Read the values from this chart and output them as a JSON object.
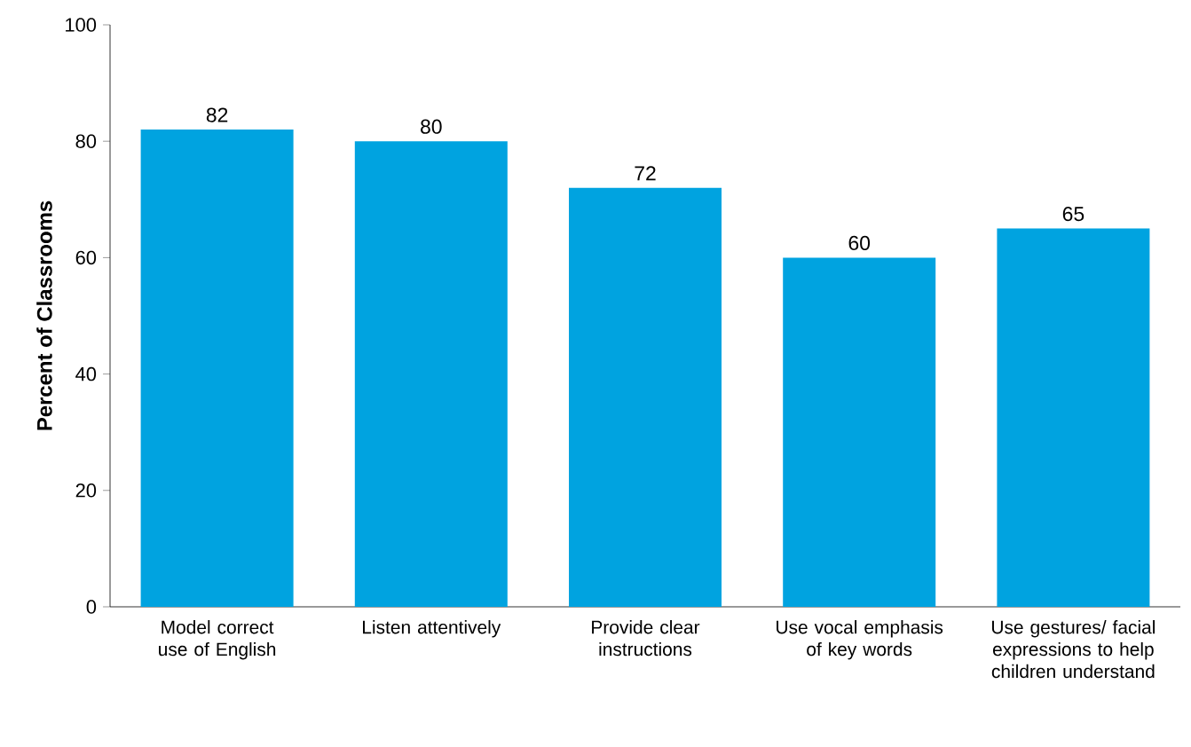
{
  "chart_data": {
    "type": "bar",
    "ylabel": "Percent of Classrooms",
    "categories": [
      "Model correct use of English",
      "Listen attentively",
      "Provide clear instructions",
      "Use vocal emphasis of key words",
      "Use gestures/ facial expressions to help children understand"
    ],
    "values": [
      82,
      80,
      72,
      60,
      65
    ],
    "color": "#00a3e0",
    "ylim": [
      0,
      100
    ],
    "yticks": [
      0,
      20,
      40,
      60,
      80,
      100
    ],
    "data_labels": true
  }
}
